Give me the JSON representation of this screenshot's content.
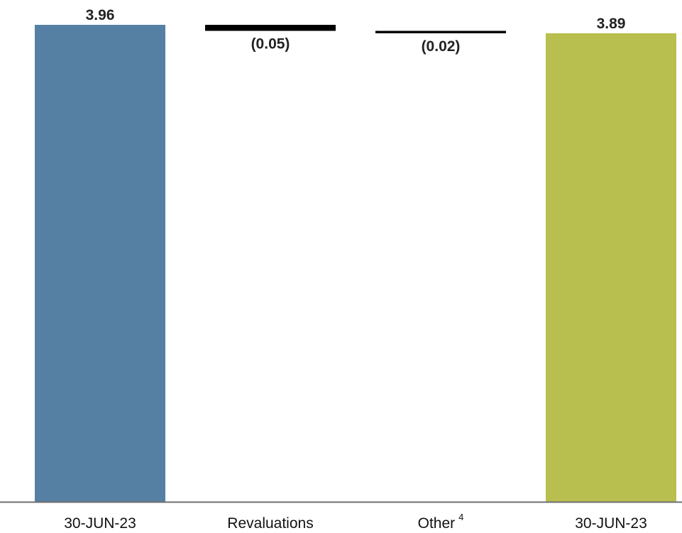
{
  "chart_data": {
    "type": "bar",
    "subtype": "waterfall",
    "categories": [
      "30-JUN-23",
      "Revaluations",
      "Other",
      "30-JUN-23"
    ],
    "category_superscripts": [
      "",
      "",
      "4",
      ""
    ],
    "values": [
      3.96,
      -0.05,
      -0.02,
      3.89
    ],
    "kinds": [
      "total",
      "delta",
      "delta",
      "total"
    ],
    "value_labels": [
      "3.96",
      "(0.05)",
      "(0.02)",
      "3.89"
    ],
    "colors": [
      "#5580a4",
      "#000000",
      "#000000",
      "#b8bf4e"
    ],
    "baseline_color": "#6e6e6e",
    "title": "",
    "xlabel": "",
    "ylabel": "",
    "grid": false,
    "legend": "none"
  }
}
